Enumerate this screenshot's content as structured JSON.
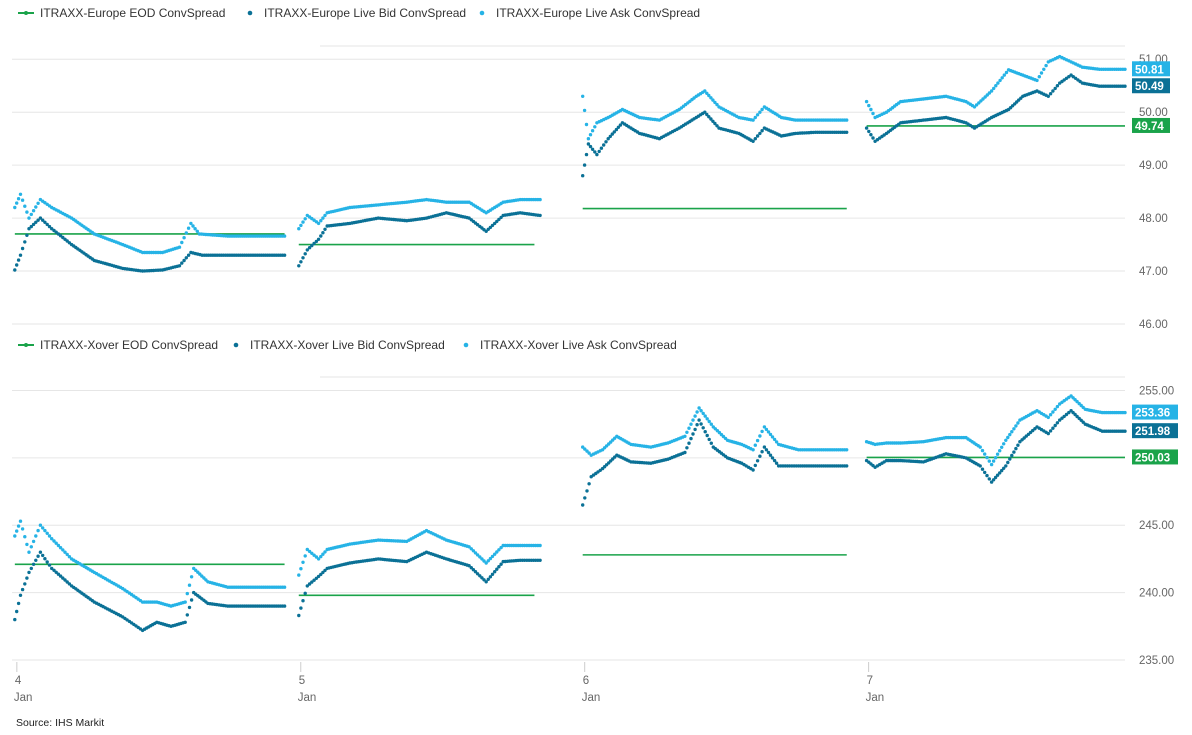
{
  "colors": {
    "eod": "#1aa34a",
    "bid": "#0b7196",
    "ask": "#26b3e6",
    "grid": "#e6e6e6"
  },
  "x_axis": {
    "ticks": [
      {
        "day": "4",
        "month": "Jan",
        "x": 4.0
      },
      {
        "day": "5",
        "month": "Jan",
        "x": 5.0
      },
      {
        "day": "6",
        "month": "Jan",
        "x": 6.0
      },
      {
        "day": "7",
        "month": "Jan",
        "x": 7.0
      }
    ],
    "range": [
      3.99,
      7.91
    ]
  },
  "source": "Source: IHS Markit",
  "chart_data": [
    {
      "type": "line",
      "legend": [
        {
          "label": "ITRAXX-Europe EOD ConvSpread",
          "color_key": "eod",
          "marker": "line"
        },
        {
          "label": "ITRAXX-Europe Live Bid ConvSpread",
          "color_key": "bid",
          "marker": "dot"
        },
        {
          "label": "ITRAXX-Europe Live Ask ConvSpread",
          "color_key": "ask",
          "marker": "dot"
        }
      ],
      "y_ticks": [
        "46.00",
        "47.00",
        "48.00",
        "49.00",
        "50.00",
        "51.00"
      ],
      "ylim": [
        46.0,
        51.0
      ],
      "last_values": [
        {
          "label": "50.81",
          "value": 50.81,
          "color_key": "ask"
        },
        {
          "label": "50.49",
          "value": 50.49,
          "color_key": "bid"
        },
        {
          "label": "49.74",
          "value": 49.74,
          "color_key": "eod"
        }
      ],
      "eod_segments": [
        {
          "from": 4.0,
          "to": 4.95,
          "value": 47.7
        },
        {
          "from": 5.0,
          "to": 5.83,
          "value": 47.5
        },
        {
          "from": 6.0,
          "to": 6.93,
          "value": 48.18
        },
        {
          "from": 7.0,
          "to": 7.91,
          "value": 49.74
        }
      ],
      "bid_series": [
        [
          [
            4.0,
            47.02
          ],
          [
            4.02,
            47.3
          ],
          [
            4.05,
            47.8
          ],
          [
            4.09,
            48.0
          ],
          [
            4.13,
            47.8
          ],
          [
            4.2,
            47.5
          ],
          [
            4.28,
            47.2
          ],
          [
            4.38,
            47.05
          ],
          [
            4.45,
            47.0
          ],
          [
            4.52,
            47.02
          ],
          [
            4.58,
            47.1
          ],
          [
            4.62,
            47.35
          ],
          [
            4.66,
            47.3
          ],
          [
            4.75,
            47.3
          ],
          [
            4.95,
            47.3
          ]
        ],
        [
          [
            5.0,
            47.1
          ],
          [
            5.03,
            47.4
          ],
          [
            5.07,
            47.6
          ],
          [
            5.1,
            47.85
          ],
          [
            5.18,
            47.9
          ],
          [
            5.28,
            48.0
          ],
          [
            5.38,
            47.95
          ],
          [
            5.45,
            48.0
          ],
          [
            5.52,
            48.1
          ],
          [
            5.6,
            48.0
          ],
          [
            5.66,
            47.75
          ],
          [
            5.72,
            48.05
          ],
          [
            5.78,
            48.1
          ],
          [
            5.85,
            48.05
          ]
        ],
        [
          [
            6.0,
            48.8
          ],
          [
            6.02,
            49.4
          ],
          [
            6.05,
            49.2
          ],
          [
            6.09,
            49.5
          ],
          [
            6.14,
            49.8
          ],
          [
            6.2,
            49.6
          ],
          [
            6.27,
            49.5
          ],
          [
            6.34,
            49.7
          ],
          [
            6.4,
            49.9
          ],
          [
            6.43,
            50.0
          ],
          [
            6.48,
            49.7
          ],
          [
            6.55,
            49.6
          ],
          [
            6.6,
            49.45
          ],
          [
            6.64,
            49.7
          ],
          [
            6.7,
            49.55
          ],
          [
            6.75,
            49.6
          ],
          [
            6.82,
            49.62
          ],
          [
            6.93,
            49.62
          ]
        ],
        [
          [
            7.0,
            49.7
          ],
          [
            7.03,
            49.45
          ],
          [
            7.07,
            49.6
          ],
          [
            7.12,
            49.8
          ],
          [
            7.2,
            49.85
          ],
          [
            7.28,
            49.9
          ],
          [
            7.35,
            49.8
          ],
          [
            7.38,
            49.7
          ],
          [
            7.44,
            49.9
          ],
          [
            7.5,
            50.05
          ],
          [
            7.55,
            50.3
          ],
          [
            7.6,
            50.4
          ],
          [
            7.64,
            50.3
          ],
          [
            7.68,
            50.55
          ],
          [
            7.72,
            50.7
          ],
          [
            7.76,
            50.55
          ],
          [
            7.82,
            50.49
          ],
          [
            7.91,
            50.49
          ]
        ]
      ],
      "ask_series": [
        [
          [
            4.0,
            48.2
          ],
          [
            4.02,
            48.45
          ],
          [
            4.05,
            48.0
          ],
          [
            4.09,
            48.35
          ],
          [
            4.13,
            48.2
          ],
          [
            4.2,
            48.0
          ],
          [
            4.28,
            47.7
          ],
          [
            4.38,
            47.5
          ],
          [
            4.45,
            47.35
          ],
          [
            4.52,
            47.35
          ],
          [
            4.58,
            47.45
          ],
          [
            4.62,
            47.9
          ],
          [
            4.65,
            47.7
          ],
          [
            4.75,
            47.66
          ],
          [
            4.95,
            47.66
          ]
        ],
        [
          [
            5.0,
            47.8
          ],
          [
            5.03,
            48.05
          ],
          [
            5.07,
            47.9
          ],
          [
            5.1,
            48.1
          ],
          [
            5.18,
            48.2
          ],
          [
            5.28,
            48.25
          ],
          [
            5.38,
            48.3
          ],
          [
            5.45,
            48.35
          ],
          [
            5.52,
            48.3
          ],
          [
            5.6,
            48.3
          ],
          [
            5.66,
            48.1
          ],
          [
            5.72,
            48.3
          ],
          [
            5.78,
            48.35
          ],
          [
            5.85,
            48.35
          ]
        ],
        [
          [
            6.0,
            50.3
          ],
          [
            6.02,
            49.5
          ],
          [
            6.05,
            49.8
          ],
          [
            6.09,
            49.9
          ],
          [
            6.14,
            50.05
          ],
          [
            6.2,
            49.9
          ],
          [
            6.27,
            49.85
          ],
          [
            6.34,
            50.05
          ],
          [
            6.4,
            50.3
          ],
          [
            6.43,
            50.4
          ],
          [
            6.48,
            50.1
          ],
          [
            6.55,
            49.9
          ],
          [
            6.6,
            49.85
          ],
          [
            6.64,
            50.1
          ],
          [
            6.7,
            49.9
          ],
          [
            6.75,
            49.85
          ],
          [
            6.82,
            49.85
          ],
          [
            6.93,
            49.85
          ]
        ],
        [
          [
            7.0,
            50.2
          ],
          [
            7.03,
            49.9
          ],
          [
            7.07,
            50.0
          ],
          [
            7.12,
            50.2
          ],
          [
            7.2,
            50.25
          ],
          [
            7.28,
            50.3
          ],
          [
            7.35,
            50.2
          ],
          [
            7.38,
            50.1
          ],
          [
            7.44,
            50.4
          ],
          [
            7.5,
            50.8
          ],
          [
            7.55,
            50.7
          ],
          [
            7.6,
            50.6
          ],
          [
            7.64,
            50.95
          ],
          [
            7.68,
            51.05
          ],
          [
            7.72,
            50.95
          ],
          [
            7.76,
            50.85
          ],
          [
            7.82,
            50.81
          ],
          [
            7.91,
            50.81
          ]
        ]
      ]
    },
    {
      "type": "line",
      "legend": [
        {
          "label": "ITRAXX-Xover EOD ConvSpread",
          "color_key": "eod",
          "marker": "line"
        },
        {
          "label": "ITRAXX-Xover Live Bid ConvSpread",
          "color_key": "bid",
          "marker": "dot"
        },
        {
          "label": "ITRAXX-Xover Live Ask ConvSpread",
          "color_key": "ask",
          "marker": "dot"
        }
      ],
      "y_ticks": [
        "235.00",
        "240.00",
        "245.00",
        "250.00",
        "255.00"
      ],
      "ylim": [
        235.0,
        255.0
      ],
      "last_values": [
        {
          "label": "253.36",
          "value": 253.36,
          "color_key": "ask"
        },
        {
          "label": "251.98",
          "value": 251.98,
          "color_key": "bid"
        },
        {
          "label": "250.03",
          "value": 250.03,
          "color_key": "eod"
        }
      ],
      "eod_segments": [
        {
          "from": 4.0,
          "to": 4.95,
          "value": 242.1
        },
        {
          "from": 5.0,
          "to": 5.83,
          "value": 239.8
        },
        {
          "from": 6.0,
          "to": 6.93,
          "value": 242.8
        },
        {
          "from": 7.0,
          "to": 7.91,
          "value": 250.03
        }
      ],
      "bid_series": [
        [
          [
            4.0,
            238.0
          ],
          [
            4.02,
            239.8
          ],
          [
            4.05,
            241.5
          ],
          [
            4.09,
            243.0
          ],
          [
            4.13,
            241.8
          ],
          [
            4.2,
            240.5
          ],
          [
            4.28,
            239.3
          ],
          [
            4.38,
            238.2
          ],
          [
            4.45,
            237.2
          ],
          [
            4.5,
            237.8
          ],
          [
            4.55,
            237.5
          ],
          [
            4.6,
            237.8
          ],
          [
            4.63,
            240.0
          ],
          [
            4.68,
            239.2
          ],
          [
            4.75,
            239.0
          ],
          [
            4.95,
            239.0
          ]
        ],
        [
          [
            5.0,
            238.3
          ],
          [
            5.03,
            240.5
          ],
          [
            5.07,
            241.2
          ],
          [
            5.1,
            241.8
          ],
          [
            5.18,
            242.2
          ],
          [
            5.28,
            242.5
          ],
          [
            5.38,
            242.3
          ],
          [
            5.45,
            243.0
          ],
          [
            5.52,
            242.5
          ],
          [
            5.6,
            242.0
          ],
          [
            5.66,
            240.8
          ],
          [
            5.72,
            242.3
          ],
          [
            5.78,
            242.4
          ],
          [
            5.85,
            242.4
          ]
        ],
        [
          [
            6.0,
            246.5
          ],
          [
            6.03,
            248.6
          ],
          [
            6.07,
            249.2
          ],
          [
            6.12,
            250.2
          ],
          [
            6.17,
            249.7
          ],
          [
            6.24,
            249.6
          ],
          [
            6.3,
            249.9
          ],
          [
            6.36,
            250.4
          ],
          [
            6.41,
            252.8
          ],
          [
            6.46,
            250.8
          ],
          [
            6.51,
            250.0
          ],
          [
            6.56,
            249.6
          ],
          [
            6.6,
            249.1
          ],
          [
            6.64,
            250.8
          ],
          [
            6.69,
            249.4
          ],
          [
            6.76,
            249.4
          ],
          [
            6.93,
            249.4
          ]
        ],
        [
          [
            7.0,
            249.8
          ],
          [
            7.03,
            249.3
          ],
          [
            7.07,
            249.8
          ],
          [
            7.12,
            249.8
          ],
          [
            7.2,
            249.7
          ],
          [
            7.28,
            250.3
          ],
          [
            7.35,
            250.0
          ],
          [
            7.4,
            249.4
          ],
          [
            7.44,
            248.2
          ],
          [
            7.49,
            249.4
          ],
          [
            7.54,
            251.2
          ],
          [
            7.6,
            252.3
          ],
          [
            7.64,
            251.8
          ],
          [
            7.68,
            252.8
          ],
          [
            7.72,
            253.5
          ],
          [
            7.77,
            252.5
          ],
          [
            7.83,
            251.98
          ],
          [
            7.91,
            251.98
          ]
        ]
      ],
      "ask_series": [
        [
          [
            4.0,
            244.2
          ],
          [
            4.02,
            245.3
          ],
          [
            4.05,
            243.0
          ],
          [
            4.09,
            245.0
          ],
          [
            4.13,
            244.0
          ],
          [
            4.2,
            242.5
          ],
          [
            4.28,
            241.5
          ],
          [
            4.38,
            240.3
          ],
          [
            4.45,
            239.3
          ],
          [
            4.5,
            239.3
          ],
          [
            4.55,
            239.0
          ],
          [
            4.6,
            239.3
          ],
          [
            4.63,
            241.8
          ],
          [
            4.68,
            240.8
          ],
          [
            4.75,
            240.4
          ],
          [
            4.95,
            240.4
          ]
        ],
        [
          [
            5.0,
            241.3
          ],
          [
            5.03,
            243.2
          ],
          [
            5.07,
            242.5
          ],
          [
            5.1,
            243.2
          ],
          [
            5.18,
            243.6
          ],
          [
            5.28,
            243.9
          ],
          [
            5.38,
            243.8
          ],
          [
            5.45,
            244.6
          ],
          [
            5.52,
            243.9
          ],
          [
            5.6,
            243.4
          ],
          [
            5.66,
            242.2
          ],
          [
            5.72,
            243.5
          ],
          [
            5.78,
            243.5
          ],
          [
            5.85,
            243.5
          ]
        ],
        [
          [
            6.0,
            250.8
          ],
          [
            6.03,
            250.2
          ],
          [
            6.07,
            250.6
          ],
          [
            6.12,
            251.6
          ],
          [
            6.17,
            251.0
          ],
          [
            6.24,
            250.8
          ],
          [
            6.3,
            251.1
          ],
          [
            6.36,
            251.6
          ],
          [
            6.41,
            253.7
          ],
          [
            6.46,
            252.3
          ],
          [
            6.51,
            251.3
          ],
          [
            6.56,
            251.0
          ],
          [
            6.6,
            250.6
          ],
          [
            6.64,
            252.3
          ],
          [
            6.69,
            251.0
          ],
          [
            6.76,
            250.6
          ],
          [
            6.93,
            250.6
          ]
        ],
        [
          [
            7.0,
            251.2
          ],
          [
            7.03,
            251.0
          ],
          [
            7.07,
            251.1
          ],
          [
            7.12,
            251.1
          ],
          [
            7.2,
            251.2
          ],
          [
            7.28,
            251.5
          ],
          [
            7.35,
            251.5
          ],
          [
            7.4,
            250.8
          ],
          [
            7.44,
            249.5
          ],
          [
            7.49,
            251.3
          ],
          [
            7.54,
            252.8
          ],
          [
            7.6,
            253.5
          ],
          [
            7.64,
            253.0
          ],
          [
            7.68,
            254.0
          ],
          [
            7.72,
            254.6
          ],
          [
            7.77,
            253.6
          ],
          [
            7.83,
            253.36
          ],
          [
            7.91,
            253.36
          ]
        ]
      ]
    }
  ]
}
